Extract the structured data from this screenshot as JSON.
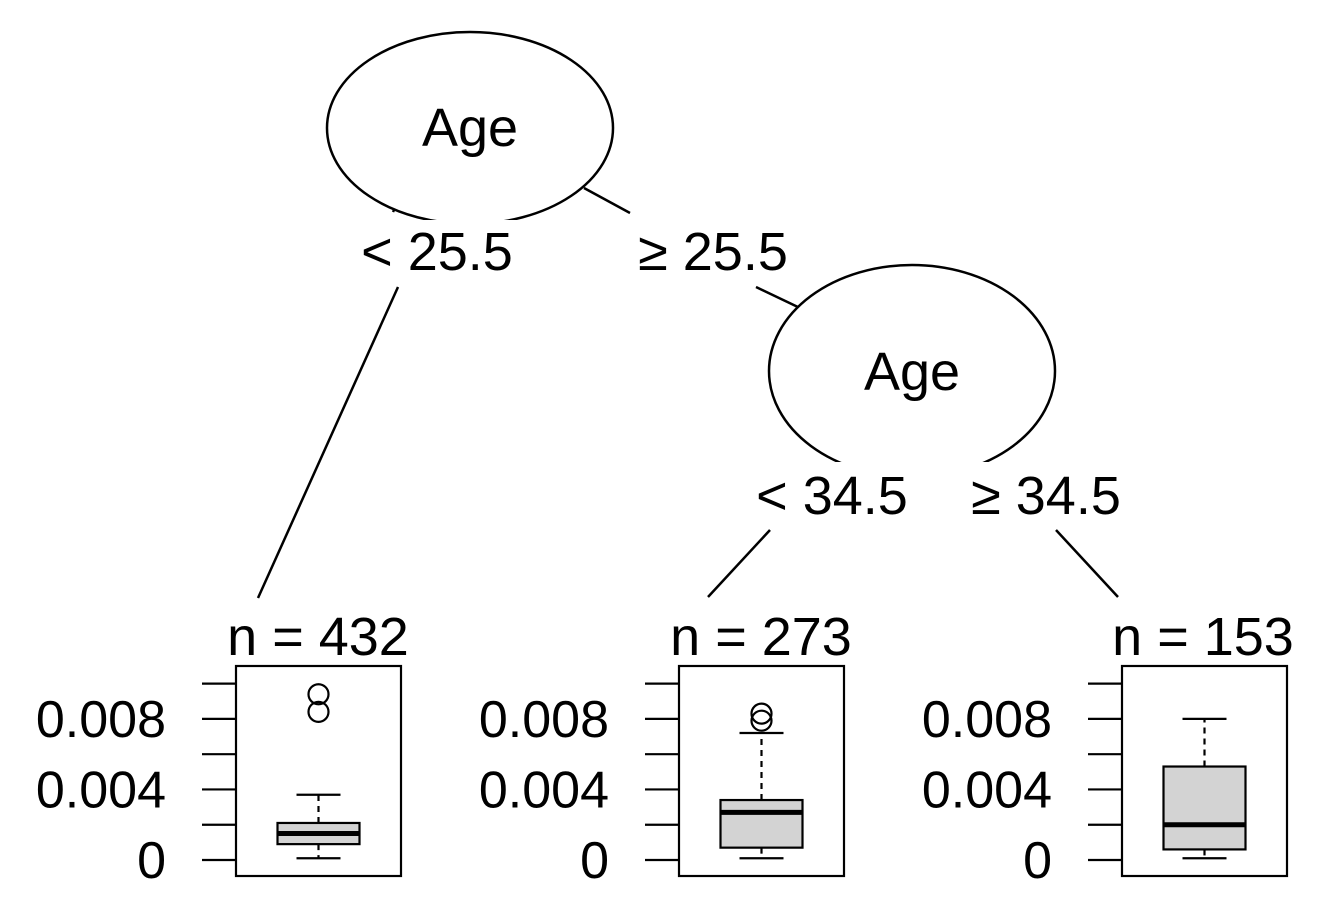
{
  "tree": {
    "root": {
      "label": "Age",
      "left_edge": "< 25.5",
      "right_edge": "≥ 25.5"
    },
    "inner": {
      "label": "Age",
      "left_edge": "< 34.5",
      "right_edge": "≥ 34.5"
    }
  },
  "leaves": [
    {
      "n_label": "n = 432",
      "box": {
        "whisker_low": 0.0001,
        "q1": 0.0009,
        "median": 0.0015,
        "q3": 0.0021,
        "whisker_high": 0.0037,
        "outliers": [
          0.0084,
          0.0094
        ]
      }
    },
    {
      "n_label": "n = 273",
      "box": {
        "whisker_low": 0.0001,
        "q1": 0.0007,
        "median": 0.0027,
        "q3": 0.0034,
        "whisker_high": 0.0072,
        "outliers": [
          0.0079,
          0.0083
        ]
      }
    },
    {
      "n_label": "n = 153",
      "box": {
        "whisker_low": 0.0001,
        "q1": 0.0006,
        "median": 0.002,
        "q3": 0.0053,
        "whisker_high": 0.008,
        "outliers": []
      }
    }
  ],
  "axis": {
    "ylim": [
      0,
      0.011
    ],
    "minor_ticks": [
      0,
      0.002,
      0.004,
      0.006,
      0.008,
      0.01
    ],
    "labels": [
      {
        "value": 0,
        "text": "0"
      },
      {
        "value": 0.004,
        "text": "0.004"
      },
      {
        "value": 0.008,
        "text": "0.008"
      }
    ]
  },
  "colors": {
    "box_fill": "#d3d3d3",
    "stroke": "#000000"
  }
}
